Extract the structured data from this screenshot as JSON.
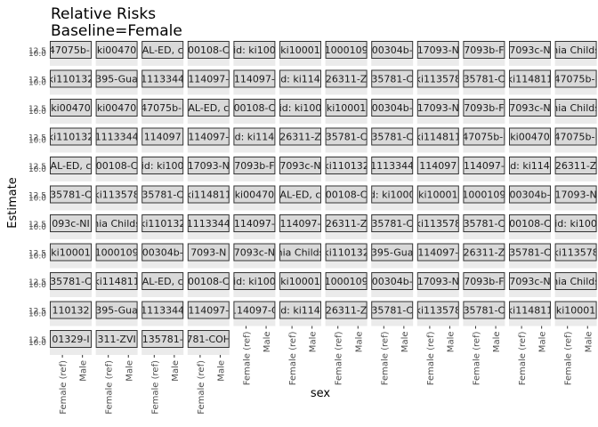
{
  "chart_data": {
    "type": "scatter",
    "title": "Relative Risks",
    "subtitle": "Baseline=Female",
    "xlabel": "sex",
    "ylabel": "Estimate",
    "x_categories": [
      "Female (ref)",
      "Male"
    ],
    "y_tick_labels": [
      "10.0",
      "12.5"
    ],
    "grid": "on",
    "legend": "none",
    "colors": {
      "strip_fill": "#d9d9d9",
      "strip_border": "#333333",
      "panel_fill": "#ebebeb",
      "text": "#000000",
      "tick_text": "#4d4d4d"
    },
    "facet_rows": [
      [
        "47075b-I",
        "ki00470",
        "AL-ED, c",
        "00108-C",
        "id: ki100",
        "ki10001",
        "1000109",
        "00304b-",
        "17093-N",
        "7093b-F",
        "7093c-N",
        "nia Childs"
      ],
      [
        "ki110132",
        "395-Gua",
        "1113344",
        "114097-",
        "114097-",
        "d: ki114",
        "26311-Z",
        "35781-C",
        "ki113578",
        "35781-C",
        "ki114811",
        "47075b-I"
      ],
      [
        "ki00470",
        "ki00470",
        "47075b-I",
        "AL-ED, c",
        "00108-C",
        "id: ki100",
        "ki10001",
        "00304b-",
        "17093-N",
        "7093b-F",
        "7093c-N",
        "nia Childs"
      ],
      [
        "ki110132",
        "1113344",
        "114097",
        "114097-",
        "d: ki114",
        "26311-Z",
        "35781-C",
        "35781-C",
        "ki114811",
        "47075b-I",
        "ki00470",
        "47075b-I"
      ],
      [
        "AL-ED, c",
        "00108-C",
        "id: ki100",
        "17093-N",
        "7093b-F",
        "7093c-N",
        "ki110132",
        "1113344",
        "114097",
        "114097-",
        "d: ki114",
        "26311-Z"
      ],
      [
        "35781-C",
        "ki113578",
        "35781-C",
        "ki114811",
        "ki00470",
        "AL-ED, c",
        "00108-C",
        "d: ki1000",
        "ki10001",
        "1000109",
        "00304b-",
        "17093-N"
      ],
      [
        "093c-NI",
        "nia Childs",
        "ki110132",
        "1113344",
        "114097-",
        "114097-",
        "26311-Z",
        "35781-C",
        "ki113578",
        "35781-C",
        "00108-C",
        "id: ki100"
      ],
      [
        "ki10001",
        "1000109",
        "00304b-",
        "7093-N",
        "7093c-N",
        "nia Childs",
        "ki110132",
        "395-Gua",
        "114097-",
        "26311-Z",
        "35781-C",
        "ki113578"
      ],
      [
        "35781-C",
        "ki114811",
        "AL-ED, c",
        "00108-C",
        "id: ki100",
        "ki10001",
        "1000109",
        "00304b-",
        "17093-N",
        "7093b-F",
        "7093c-N",
        "nia Childs"
      ],
      [
        "110132",
        "395-Gua",
        "1113344",
        "114097-",
        "114097-C",
        "d: ki114",
        "26311-Z",
        "35781-C",
        "ki113578",
        "35781-C",
        "ki114811",
        "ki10001"
      ],
      [
        "01329-I",
        "311-ZVI",
        "135781-",
        "781-COH"
      ]
    ],
    "x_axis_columns": [
      0,
      1,
      2,
      3,
      4,
      5,
      6,
      7,
      8,
      9,
      10,
      11
    ]
  }
}
